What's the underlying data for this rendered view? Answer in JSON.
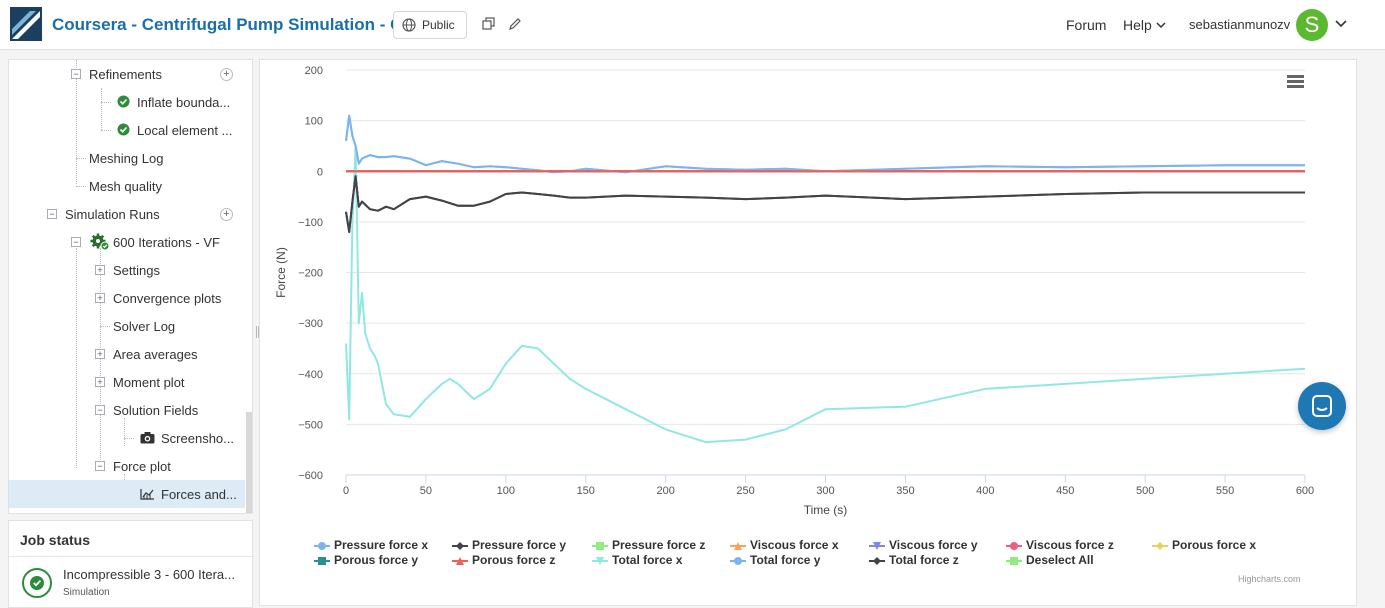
{
  "header": {
    "title": "Coursera - Centrifugal Pump Simulation - Copy",
    "visibility_label": "Public",
    "nav": {
      "forum": "Forum",
      "help": "Help",
      "user": "sebastianmunozv"
    },
    "avatar_letter": "S",
    "avatar_color": "#5cb82f"
  },
  "tree": {
    "items": [
      {
        "label": "Refinements",
        "has_add": true
      },
      {
        "label": "Inflate bounda...",
        "status": "success"
      },
      {
        "label": "Local element ...",
        "status": "success"
      },
      {
        "label": "Meshing Log"
      },
      {
        "label": "Mesh quality"
      },
      {
        "label": "Simulation Runs",
        "has_add": true
      },
      {
        "label": "600 Iterations - VF"
      },
      {
        "label": "Settings"
      },
      {
        "label": "Convergence plots"
      },
      {
        "label": "Solver Log"
      },
      {
        "label": "Area averages"
      },
      {
        "label": "Moment plot"
      },
      {
        "label": "Solution Fields"
      },
      {
        "label": "Screensho..."
      },
      {
        "label": "Force plot"
      },
      {
        "label": "Forces and...",
        "selected": true
      }
    ]
  },
  "job_status": {
    "title": "Job status",
    "job_name": "Incompressible 3 - 600 Itera...",
    "job_type": "Simulation",
    "status_color": "#2e8b3a"
  },
  "chart_data": {
    "type": "line",
    "xlabel": "Time (s)",
    "ylabel": "Force (N)",
    "xlim": [
      0,
      600
    ],
    "ylim": [
      -600,
      200
    ],
    "x_ticks": [
      0,
      50,
      100,
      150,
      200,
      250,
      300,
      350,
      400,
      450,
      500,
      550,
      600
    ],
    "y_ticks": [
      200,
      100,
      0,
      -100,
      -200,
      -300,
      -400,
      -500,
      -600
    ],
    "grid": true,
    "legend_position": "bottom",
    "series": [
      {
        "name": "Pressure force x",
        "color": "#7cb5ec",
        "marker": "circle",
        "x": [
          0,
          2,
          4,
          6,
          8,
          10,
          15,
          20,
          25,
          30,
          40,
          50,
          60,
          70,
          80,
          90,
          100,
          110,
          120,
          130,
          140,
          150,
          175,
          200,
          225,
          250,
          275,
          300,
          350,
          400,
          450,
          500,
          550,
          600
        ],
        "values": [
          60,
          110,
          70,
          50,
          15,
          25,
          32,
          28,
          28,
          30,
          25,
          12,
          20,
          15,
          8,
          10,
          8,
          5,
          2,
          -2,
          0,
          5,
          -2,
          10,
          5,
          3,
          5,
          0,
          5,
          10,
          8,
          10,
          12,
          12
        ]
      },
      {
        "name": "Pressure force y",
        "color": "#434348",
        "marker": "diamond",
        "x": [
          0,
          2,
          4,
          6,
          8,
          10,
          15,
          20,
          25,
          30,
          40,
          50,
          60,
          70,
          80,
          90,
          100,
          110,
          120,
          130,
          140,
          150,
          175,
          200,
          225,
          250,
          275,
          300,
          350,
          400,
          450,
          500,
          550,
          600
        ],
        "values": [
          -80,
          -120,
          -60,
          -10,
          -70,
          -60,
          -75,
          -78,
          -70,
          -75,
          -55,
          -50,
          -58,
          -68,
          -68,
          -60,
          -45,
          -42,
          -45,
          -48,
          -52,
          -52,
          -48,
          -50,
          -52,
          -55,
          -52,
          -48,
          -55,
          -50,
          -45,
          -42,
          -42,
          -42
        ]
      },
      {
        "name": "Pressure force z",
        "color": "#90ed7d",
        "marker": "square",
        "x": [
          0,
          600
        ],
        "values": [
          0,
          0
        ]
      },
      {
        "name": "Viscous force x",
        "color": "#f7a35c",
        "marker": "triangle",
        "x": [
          0,
          600
        ],
        "values": [
          0,
          0
        ]
      },
      {
        "name": "Viscous force y",
        "color": "#8085e9",
        "marker": "triangle-down",
        "x": [
          0,
          600
        ],
        "values": [
          0,
          0
        ]
      },
      {
        "name": "Viscous force z",
        "color": "#f15c80",
        "marker": "circle",
        "x": [
          0,
          600
        ],
        "values": [
          0,
          0
        ]
      },
      {
        "name": "Porous force x",
        "color": "#e4d354",
        "marker": "diamond",
        "x": [
          0,
          600
        ],
        "values": [
          0,
          0
        ]
      },
      {
        "name": "Porous force y",
        "color": "#2b908f",
        "marker": "square",
        "x": [
          0,
          600
        ],
        "values": [
          0,
          0
        ]
      },
      {
        "name": "Porous force z",
        "color": "#f45b5b",
        "marker": "triangle",
        "x": [
          0,
          600
        ],
        "values": [
          0,
          0
        ]
      },
      {
        "name": "Total force x",
        "color": "#91e8e1",
        "marker": "triangle-down",
        "x": [
          0,
          2,
          4,
          6,
          8,
          10,
          12,
          15,
          18,
          20,
          25,
          30,
          40,
          50,
          60,
          65,
          70,
          80,
          90,
          100,
          110,
          120,
          130,
          140,
          150,
          175,
          200,
          225,
          250,
          275,
          300,
          350,
          400,
          450,
          500,
          550,
          600
        ],
        "values": [
          -340,
          -490,
          -100,
          50,
          -300,
          -240,
          -320,
          -350,
          -365,
          -380,
          -460,
          -480,
          -485,
          -450,
          -420,
          -410,
          -420,
          -450,
          -430,
          -380,
          -345,
          -350,
          -380,
          -410,
          -430,
          -470,
          -510,
          -535,
          -530,
          -510,
          -470,
          -465,
          -430,
          -420,
          -410,
          -400,
          -390
        ]
      },
      {
        "name": "Total force y",
        "color": "#7cb5ec",
        "marker": "circle",
        "x": [
          0,
          2,
          4,
          6,
          8,
          10,
          15,
          20,
          25,
          30,
          40,
          50,
          60,
          70,
          80,
          90,
          100,
          110,
          120,
          130,
          140,
          150,
          175,
          200,
          225,
          250,
          275,
          300,
          350,
          400,
          450,
          500,
          550,
          600
        ],
        "values": [
          60,
          110,
          70,
          50,
          15,
          25,
          32,
          28,
          28,
          30,
          25,
          12,
          20,
          15,
          8,
          10,
          8,
          5,
          2,
          -2,
          0,
          5,
          -2,
          10,
          5,
          3,
          5,
          0,
          5,
          10,
          8,
          10,
          12,
          12
        ]
      },
      {
        "name": "Total force z",
        "color": "#434348",
        "marker": "diamond",
        "x": [
          0,
          2,
          4,
          6,
          8,
          10,
          15,
          20,
          25,
          30,
          40,
          50,
          60,
          70,
          80,
          90,
          100,
          110,
          120,
          130,
          140,
          150,
          175,
          200,
          225,
          250,
          275,
          300,
          350,
          400,
          450,
          500,
          550,
          600
        ],
        "values": [
          -80,
          -120,
          -60,
          -10,
          -70,
          -60,
          -75,
          -78,
          -70,
          -75,
          -55,
          -50,
          -58,
          -68,
          -68,
          -60,
          -45,
          -42,
          -45,
          -48,
          -52,
          -52,
          -48,
          -50,
          -52,
          -55,
          -52,
          -48,
          -55,
          -50,
          -45,
          -42,
          -42,
          -42
        ]
      }
    ],
    "deselect_label": "Deselect All",
    "credits": "Highcharts.com"
  }
}
